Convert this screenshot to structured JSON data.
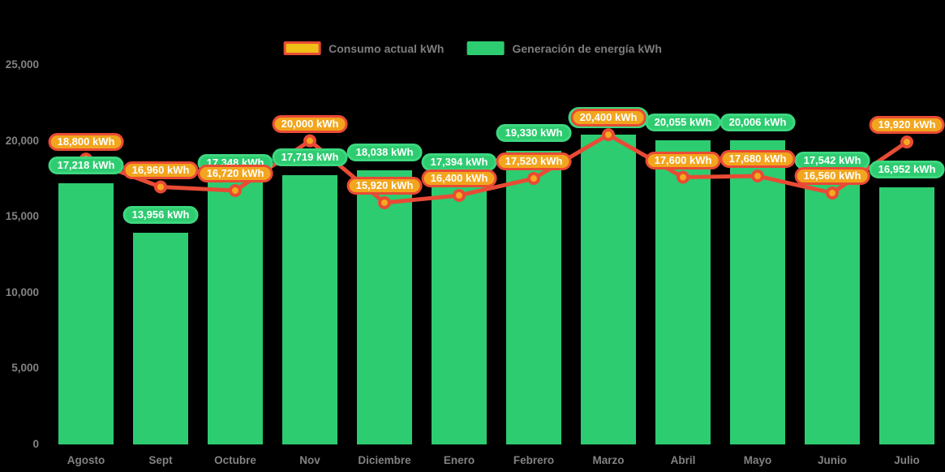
{
  "legend": {
    "consumption_label": "Consumo actual kWh",
    "generation_label": "Generación de energía kWh"
  },
  "colors": {
    "bar_green": "#2ECC71",
    "green_badge_border": "#3DD77F",
    "line_red": "#E84B35",
    "marker_yellow": "#F5A91C",
    "orange_badge_fill": "#F2A51D",
    "orange_badge_border": "#E94B35",
    "axis_text": "#828282",
    "background": "#000000"
  },
  "chart_data": {
    "type": "bar",
    "title": "",
    "xlabel": "",
    "ylabel": "",
    "categories": [
      "Agosto",
      "Sept",
      "Octubre",
      "Nov",
      "Diciembre",
      "Enero",
      "Febrero",
      "Marzo",
      "Abril",
      "Mayo",
      "Junio",
      "Julio"
    ],
    "series": [
      {
        "name": "Generación de energía kWh",
        "kind": "bar",
        "color": "#2ECC71",
        "values": [
          17218,
          13956,
          17348,
          17719,
          18038,
          17394,
          19330,
          20400,
          20055,
          20006,
          17542,
          16952
        ],
        "labels": [
          "17,218 kWh",
          "13,956 kWh",
          "17.348 kWh",
          "17,719 kWh",
          "18,038 kWh",
          "17,394 kWh",
          "19,330 kWh",
          "",
          "20,055 kWh",
          "20,006 kWh",
          "17,542 kWh",
          "16,952 kWh"
        ]
      },
      {
        "name": "Consumo actual kWh",
        "kind": "line",
        "color": "#E84B35",
        "values": [
          18800,
          16960,
          16720,
          20000,
          15920,
          16400,
          17520,
          20400,
          17600,
          17680,
          16560,
          19920
        ],
        "labels": [
          "18,800 kWh",
          "16,960 kWh",
          "16,720 kWh",
          "20,000 kWh",
          "15,920 kWh",
          "16,400 kWh",
          "17,520 kWh",
          "20,400 kWh",
          "17,600 kWh",
          "17,680 kWh",
          "16,560 kWh",
          "19,920 kWh"
        ]
      }
    ],
    "ylim": [
      0,
      25000
    ],
    "yticks": {
      "values": [
        0,
        5000,
        10000,
        15000,
        20000,
        25000
      ],
      "labels": [
        "0",
        "5,000",
        "10,000",
        "15,000",
        "20,000",
        "25,000"
      ]
    },
    "grid": false,
    "legend_position": "top"
  }
}
